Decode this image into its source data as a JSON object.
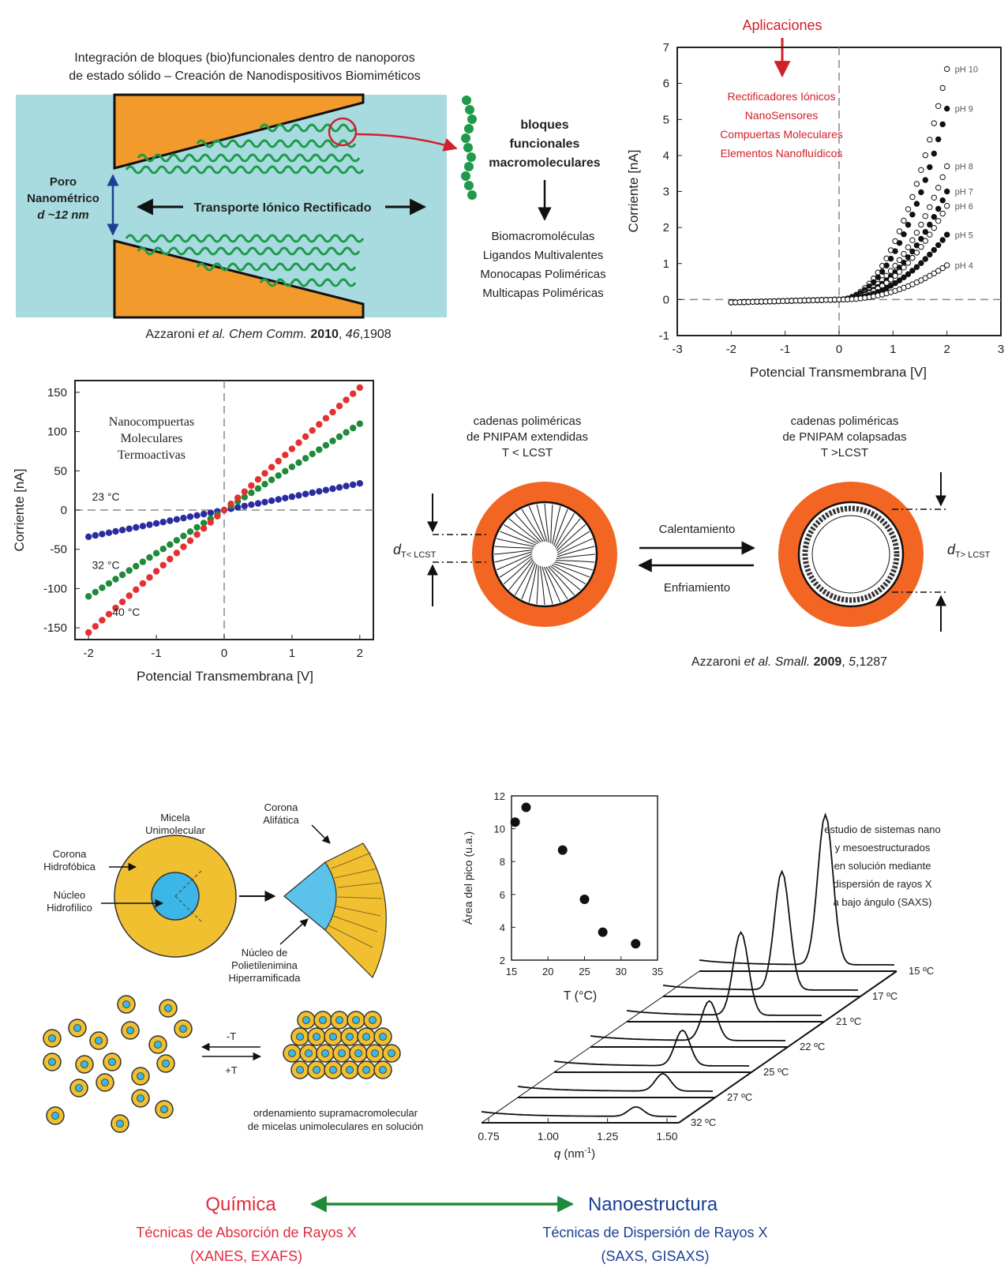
{
  "top_left": {
    "title_line1": "Integración de bloques (bio)funcionales dentro de nanoporos",
    "title_line2": "de estado sólido – Creación de Nanodispositivos Biomiméticos",
    "pore_label_1": "Poro",
    "pore_label_2": "Nanométrico",
    "pore_label_3": "d ~12 nm",
    "transport_label": "Transporte Iónico Rectificado",
    "blocks_1": "bloques",
    "blocks_2": "funcionales",
    "blocks_3": "macromoleculares",
    "list": [
      "Biomacromoléculas",
      "Ligandos Multivalentes",
      "Monocapas Poliméricas",
      "Multicapas Poliméricas"
    ],
    "citation_a": "Azzaroni ",
    "citation_b": "et al.",
    "citation_c": " Chem Comm. ",
    "citation_d": "2010",
    "citation_e": ", ",
    "citation_f": "46",
    "citation_g": ",1908"
  },
  "apps": {
    "title": "Aplicaciones",
    "items": [
      "Rectificadores Iónicos",
      "NanoSensores",
      "Compuertas Moleculares",
      "Elementos Nanofluídicos"
    ]
  },
  "chart_ph": {
    "type": "line",
    "xlabel": "Potencial Transmembrana [V]",
    "ylabel": "Corriente [nA]",
    "xticks": [
      "-3",
      "-2",
      "-1",
      "0",
      "1",
      "2",
      "3"
    ],
    "yticks": [
      "-1",
      "0",
      "1",
      "2",
      "3",
      "4",
      "5",
      "6",
      "7"
    ],
    "xlim": [
      -3,
      3
    ],
    "ylim": [
      -1,
      7
    ],
    "series": [
      {
        "name": "pH 10",
        "end": 6.4
      },
      {
        "name": "pH 9",
        "end": 5.3
      },
      {
        "name": "pH 8",
        "end": 3.7
      },
      {
        "name": "pH 7",
        "end": 3.0
      },
      {
        "name": "pH 6",
        "end": 2.6
      },
      {
        "name": "pH 5",
        "end": 1.8
      },
      {
        "name": "pH 4",
        "end": 0.95
      }
    ]
  },
  "chart_temp": {
    "type": "scatter",
    "title_1": "Nanocompuertas",
    "title_2": "Moleculares",
    "title_3": "Termoactivas",
    "xlabel": "Potencial Transmembrana [V]",
    "ylabel": "Corriente [nA]",
    "xticks": [
      "-2",
      "-1",
      "0",
      "1",
      "2"
    ],
    "yticks": [
      "150",
      "100",
      "50",
      "0",
      "-50",
      "-100",
      "-150"
    ],
    "xlim": [
      -2.2,
      2.2
    ],
    "ylim": [
      -165,
      165
    ],
    "series": [
      {
        "name": "23 °C",
        "color": "#2b2ba0",
        "slope": 17
      },
      {
        "name": "32 °C",
        "color": "#1f8a3a",
        "slope": 55
      },
      {
        "name": "40 °C",
        "color": "#e53030",
        "slope": 78
      }
    ]
  },
  "pnipam": {
    "ext_1": "cadenas poliméricas",
    "ext_2": "de PNIPAM extendidas",
    "ext_3": "T < LCST",
    "col_1": "cadenas poliméricas",
    "col_2": "de PNIPAM colapsadas",
    "col_3": "T >LCST",
    "heating": "Calentamiento",
    "cooling": "Enfriamiento",
    "d_left": "d",
    "d_left_sub": "T< LCST",
    "d_right": "d",
    "d_right_sub": "T> LCST",
    "citation_a": "Azzaroni ",
    "citation_b": "et al.",
    "citation_c": " Small. ",
    "citation_d": "2009",
    "citation_e": ", ",
    "citation_f": "5",
    "citation_g": ",1287"
  },
  "micelle": {
    "label_micela_1": "Micela",
    "label_micela_2": "Unimolecular",
    "corona_h_1": "Corona",
    "corona_h_2": "Hidrofóbica",
    "nucleo_h_1": "Núcleo",
    "nucleo_h_2": "Hidrofílico",
    "corona_a_1": "Corona",
    "corona_a_2": "Alifática",
    "nucleo_p_1": "Núcleo de",
    "nucleo_p_2": "Polietilenimina",
    "nucleo_p_3": "Hiperramificada",
    "minus_t": "-T",
    "plus_t": "+T",
    "order_1": "ordenamiento supramacromolecular",
    "order_2": "de micelas unimoleculares en solución"
  },
  "chart_area": {
    "type": "scatter",
    "xlabel": "T (°C)",
    "ylabel": "Área del pico (u.a.)",
    "xticks": [
      "15",
      "20",
      "25",
      "30",
      "35"
    ],
    "yticks": [
      "2",
      "4",
      "6",
      "8",
      "10",
      "12"
    ],
    "xlim": [
      15,
      35
    ],
    "ylim": [
      2,
      12
    ],
    "points": [
      [
        15.5,
        10.4
      ],
      [
        17,
        11.3
      ],
      [
        22,
        8.7
      ],
      [
        25,
        5.7
      ],
      [
        27.5,
        3.7
      ],
      [
        32,
        3.0
      ]
    ]
  },
  "chart_saxs": {
    "type": "line",
    "xlabel": "q (nm-1)",
    "xlabel_q": "q",
    "xlabel_unit": " (nm",
    "xlabel_sup": "-1",
    "xlabel_close": ")",
    "xticks": [
      "0.75",
      "1.00",
      "1.25",
      "1.50"
    ],
    "temps": [
      "15 ºC",
      "17 ºC",
      "21 ºC",
      "22 ºC",
      "25 ºC",
      "27 ºC",
      "32 ºC"
    ],
    "note": [
      "estudio de sistemas nano",
      "y mesoestructurados",
      "en solución mediante",
      "dispersión de rayos X",
      "a bajo ángulo (SAXS)"
    ]
  },
  "bottom": {
    "chem": "Química",
    "nano": "Nanoestructura",
    "abs_1": "Técnicas de Absorción de Rayos X",
    "abs_2": "(XANES, EXAFS)",
    "disp_1": "Técnicas de Dispersión de Rayos X",
    "disp_2": "(SAXS, GISAXS)"
  },
  "colors": {
    "orange": "#f39a2c",
    "teal": "#a8dbe0",
    "green": "#1f8a3a",
    "red": "#e02b3c",
    "blue": "#1c3f94",
    "yellow": "#f0c030",
    "cyan": "#3bb6e6",
    "pnipam_orange": "#f26522"
  }
}
